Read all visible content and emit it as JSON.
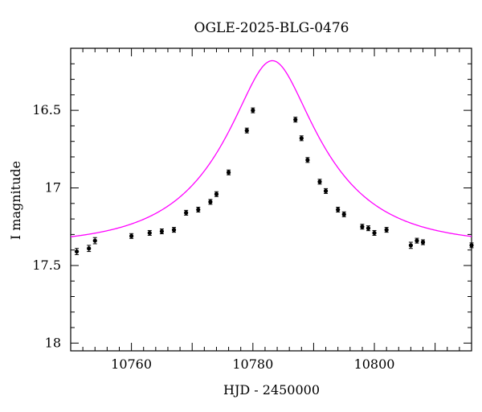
{
  "chart_data": {
    "type": "scatter",
    "title": "OGLE-2025-BLG-0476",
    "xlabel": "HJD - 2450000",
    "ylabel": "I magnitude",
    "xlim": [
      10750,
      10816
    ],
    "ylim": [
      18.05,
      16.1
    ],
    "y_inverted": true,
    "x_ticks": [
      10760,
      10780,
      10800
    ],
    "y_ticks": [
      16.5,
      17,
      17.5,
      18
    ],
    "x_tick_labels": [
      "10760",
      "10780",
      "10800"
    ],
    "y_tick_labels": [
      "16.5",
      "17",
      "17.5",
      "18"
    ],
    "grid": false,
    "legend": "none",
    "series": [
      {
        "kind": "points",
        "color": "#000000",
        "points": [
          {
            "x": 10751.0,
            "y": 17.41,
            "err": 0.02
          },
          {
            "x": 10753.0,
            "y": 17.39,
            "err": 0.02
          },
          {
            "x": 10754.0,
            "y": 17.34,
            "err": 0.02
          },
          {
            "x": 10760.0,
            "y": 17.31,
            "err": 0.01
          },
          {
            "x": 10763.0,
            "y": 17.29,
            "err": 0.01
          },
          {
            "x": 10765.0,
            "y": 17.28,
            "err": 0.01
          },
          {
            "x": 10767.0,
            "y": 17.27,
            "err": 0.01
          },
          {
            "x": 10769.0,
            "y": 17.16,
            "err": 0.01
          },
          {
            "x": 10771.0,
            "y": 17.14,
            "err": 0.01
          },
          {
            "x": 10773.0,
            "y": 17.09,
            "err": 0.01
          },
          {
            "x": 10774.0,
            "y": 17.04,
            "err": 0.01
          },
          {
            "x": 10776.0,
            "y": 16.9,
            "err": 0.01
          },
          {
            "x": 10779.0,
            "y": 16.63,
            "err": 0.01
          },
          {
            "x": 10780.0,
            "y": 16.5,
            "err": 0.01
          },
          {
            "x": 10787.0,
            "y": 16.56,
            "err": 0.01
          },
          {
            "x": 10788.0,
            "y": 16.68,
            "err": 0.01
          },
          {
            "x": 10789.0,
            "y": 16.82,
            "err": 0.01
          },
          {
            "x": 10791.0,
            "y": 16.96,
            "err": 0.01
          },
          {
            "x": 10792.0,
            "y": 17.02,
            "err": 0.01
          },
          {
            "x": 10794.0,
            "y": 17.14,
            "err": 0.01
          },
          {
            "x": 10795.0,
            "y": 17.17,
            "err": 0.01
          },
          {
            "x": 10798.0,
            "y": 17.25,
            "err": 0.01
          },
          {
            "x": 10799.0,
            "y": 17.26,
            "err": 0.01
          },
          {
            "x": 10800.0,
            "y": 17.29,
            "err": 0.01
          },
          {
            "x": 10802.0,
            "y": 17.27,
            "err": 0.01
          },
          {
            "x": 10806.0,
            "y": 17.37,
            "err": 0.02
          },
          {
            "x": 10807.0,
            "y": 17.34,
            "err": 0.01
          },
          {
            "x": 10808.0,
            "y": 17.35,
            "err": 0.01
          },
          {
            "x": 10816.0,
            "y": 17.37,
            "err": 0.01
          }
        ]
      },
      {
        "kind": "model-curve",
        "color": "#ff00ff",
        "peak_x": 10783.2,
        "peak_y": 16.18,
        "baseline_y": 17.37
      }
    ]
  }
}
